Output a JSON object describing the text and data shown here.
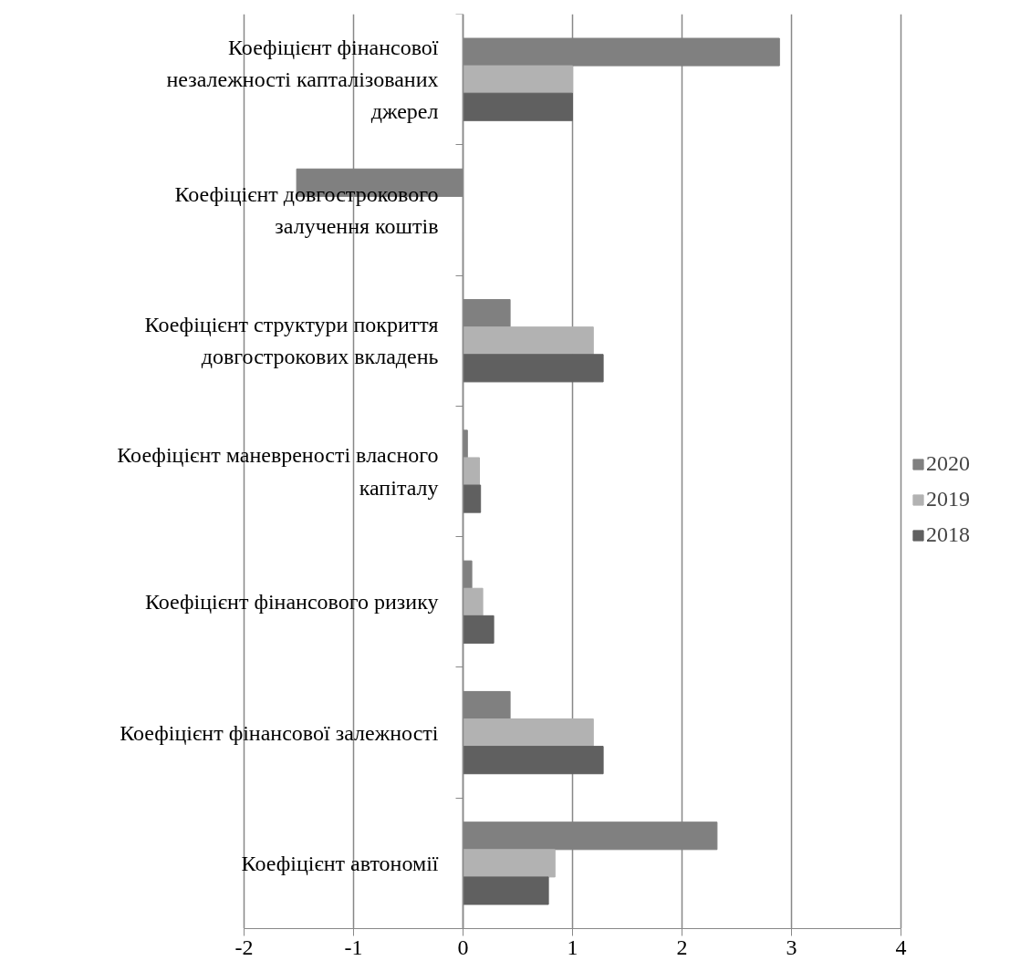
{
  "chart_data": {
    "type": "bar",
    "orientation": "horizontal",
    "categories": [
      "Коефіцієнт фінансової незалежності капталізованих джерел",
      "Коефіцієнт довгострокового залучення коштів",
      "Коефіцієнт структури покриття довгострокових вкладень",
      "Коефіцієнт маневреності власного капіталу",
      "Коефіцієнт фінансового ризику",
      "Коефіцієнт фінансової залежності",
      "Коефіцієнт автономії"
    ],
    "series": [
      {
        "name": "2020",
        "color": "#808080",
        "values": [
          2.89,
          -1.52,
          0.43,
          0.04,
          0.08,
          0.43,
          2.32
        ]
      },
      {
        "name": "2019",
        "color": "#b2b2b2",
        "values": [
          1.0,
          null,
          1.19,
          0.15,
          0.18,
          1.19,
          0.84
        ]
      },
      {
        "name": "2018",
        "color": "#606060",
        "values": [
          1.0,
          null,
          1.28,
          0.16,
          0.28,
          1.28,
          0.78
        ]
      }
    ],
    "xlim": [
      -2,
      4
    ],
    "xticks": [
      -2,
      -1,
      0,
      1,
      2,
      3,
      4
    ],
    "grid": "x",
    "legend": "right"
  }
}
